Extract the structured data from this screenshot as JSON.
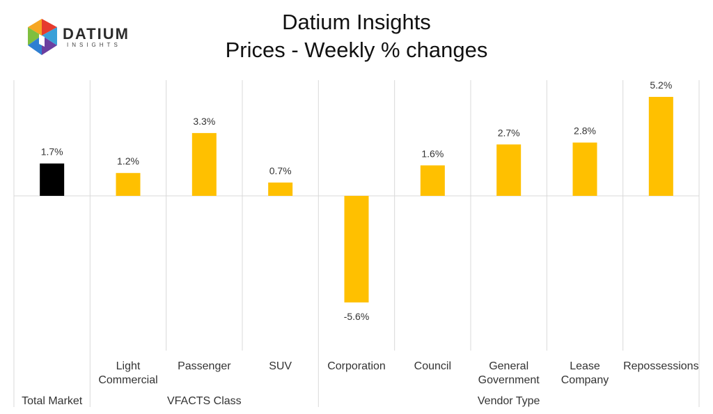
{
  "header": {
    "title_line1": "Datium Insights",
    "title_line2": "Prices - Weekly % changes"
  },
  "logo": {
    "wordmark": "DATIUM",
    "subtitle": "INSIGHTS",
    "colors": [
      "#e63b2e",
      "#f6a623",
      "#7fbf3f",
      "#2f7fd1",
      "#6b3fa0"
    ]
  },
  "colors": {
    "total_market": "#000000",
    "segments": "#ffc000",
    "gridline": "#d9d9d9"
  },
  "chart_data": {
    "type": "bar",
    "title": "Prices - Weekly % changes",
    "categories": [
      [
        "Total Market"
      ],
      [
        "Light",
        "Commercial"
      ],
      [
        "Passenger"
      ],
      [
        "SUV"
      ],
      [
        "Corporation"
      ],
      [
        "Council"
      ],
      [
        "General",
        "Government"
      ],
      [
        "Lease",
        "Company"
      ],
      [
        "Repossessions"
      ]
    ],
    "groups": [
      {
        "label": "Total Market",
        "categories": [
          0
        ]
      },
      {
        "label": "VFACTS Class",
        "categories": [
          1,
          2,
          3
        ]
      },
      {
        "label": "Vendor Type",
        "categories": [
          4,
          5,
          6,
          7,
          8
        ]
      }
    ],
    "values": [
      1.7,
      1.2,
      3.3,
      0.7,
      -5.6,
      1.6,
      2.7,
      2.8,
      5.2
    ],
    "data_labels": [
      "1.7%",
      "1.2%",
      "3.3%",
      "0.7%",
      "-5.6%",
      "1.6%",
      "2.7%",
      "2.8%",
      "5.2%"
    ],
    "ylim": [
      -5.6,
      5.2
    ],
    "unit": "%",
    "grid": true,
    "legend": "none"
  }
}
